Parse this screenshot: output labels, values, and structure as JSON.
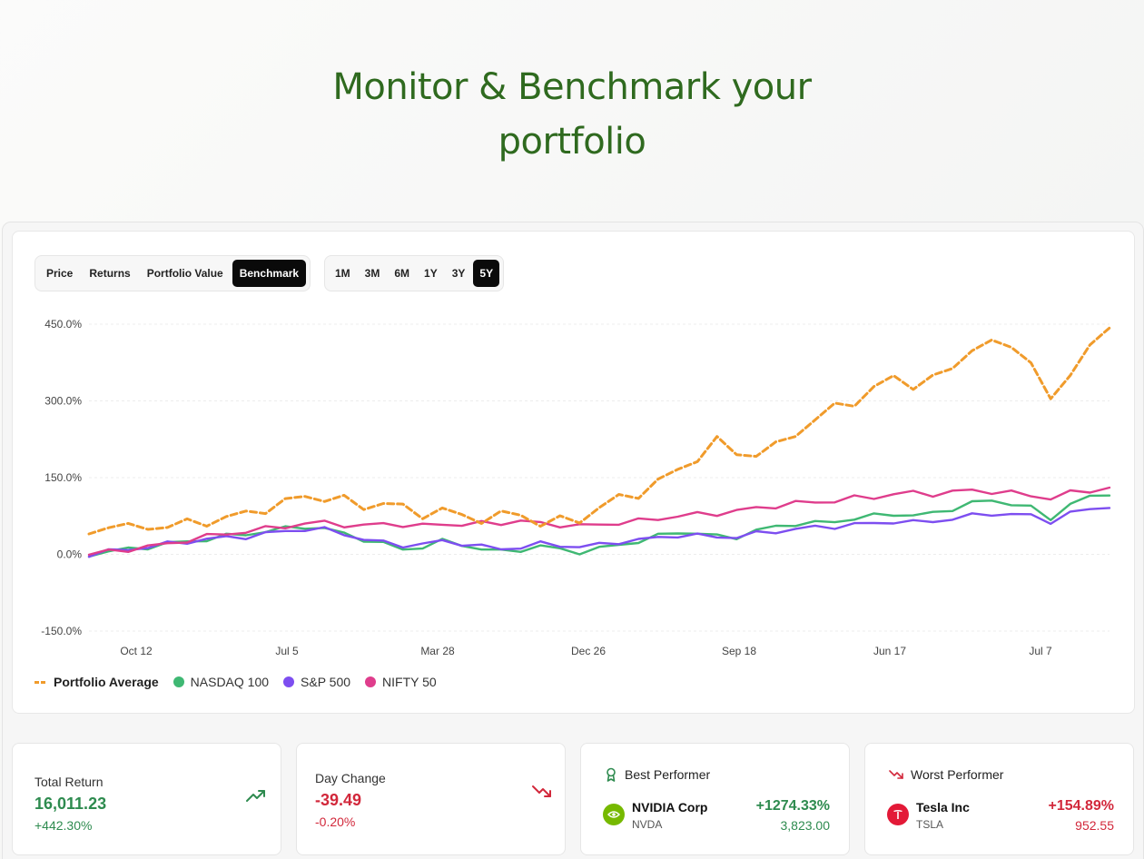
{
  "hero": {
    "line1": "Monitor & Benchmark your",
    "line2": "portfolio"
  },
  "view_tabs": [
    "Price",
    "Returns",
    "Portfolio Value",
    "Benchmark"
  ],
  "view_active": "Benchmark",
  "range_tabs": [
    "1M",
    "3M",
    "6M",
    "1Y",
    "3Y",
    "5Y"
  ],
  "range_active": "5Y",
  "chart_data": {
    "type": "line",
    "ylim": [
      -150,
      450
    ],
    "yticks": [
      "450.0%",
      "300.0%",
      "150.0%",
      "0.0%",
      "-150.0%"
    ],
    "ytick_values": [
      450,
      300,
      150,
      0,
      -150
    ],
    "xticks": [
      "Oct 12",
      "Jul 5",
      "Mar 28",
      "Dec 26",
      "Sep 18",
      "Jun 17",
      "Jul 7"
    ],
    "legend_position": "bottom-left",
    "grid": true,
    "series": [
      {
        "name": "Portfolio Average",
        "color": "#f09b2b",
        "dashed": true,
        "values": [
          40,
          60,
          50,
          55,
          55,
          60,
          65,
          70,
          80,
          90,
          100,
          115,
          110,
          105,
          95,
          100,
          90,
          80,
          85,
          75,
          70,
          75,
          80,
          60,
          65,
          70,
          90,
          110,
          120,
          140,
          165,
          190,
          220,
          200,
          195,
          210,
          240,
          260,
          290,
          300,
          320,
          350,
          330,
          340,
          370,
          400,
          410,
          415,
          370,
          300,
          360,
          400,
          445
        ]
      },
      {
        "name": "NASDAQ 100",
        "color": "#3fb873",
        "values": [
          0,
          5,
          10,
          15,
          20,
          25,
          30,
          35,
          40,
          45,
          50,
          55,
          50,
          40,
          30,
          20,
          10,
          15,
          25,
          20,
          10,
          5,
          10,
          15,
          10,
          5,
          10,
          20,
          25,
          35,
          45,
          40,
          35,
          35,
          45,
          55,
          60,
          60,
          65,
          70,
          75,
          80,
          75,
          80,
          90,
          100,
          105,
          100,
          90,
          70,
          100,
          110,
          120
        ]
      },
      {
        "name": "S&P 500",
        "color": "#7d4ef0",
        "values": [
          0,
          5,
          10,
          15,
          20,
          25,
          30,
          32,
          35,
          40,
          45,
          50,
          48,
          40,
          30,
          22,
          18,
          20,
          25,
          22,
          15,
          10,
          15,
          20,
          18,
          15,
          18,
          25,
          28,
          32,
          38,
          36,
          34,
          35,
          40,
          45,
          50,
          52,
          55,
          58,
          60,
          65,
          62,
          65,
          70,
          75,
          80,
          78,
          75,
          65,
          80,
          88,
          95
        ]
      },
      {
        "name": "NIFTY 50",
        "color": "#df3d8c",
        "values": [
          0,
          5,
          10,
          15,
          20,
          28,
          35,
          40,
          45,
          50,
          55,
          60,
          62,
          58,
          55,
          60,
          58,
          55,
          60,
          58,
          60,
          62,
          65,
          60,
          58,
          55,
          58,
          62,
          65,
          70,
          75,
          78,
          80,
          85,
          90,
          95,
          100,
          102,
          105,
          110,
          112,
          118,
          120,
          118,
          122,
          125,
          123,
          120,
          115,
          110,
          120,
          125,
          130
        ]
      }
    ]
  },
  "stats": {
    "total_return": {
      "label": "Total Return",
      "value": "16,011.23",
      "sub": "+442.30%"
    },
    "day_change": {
      "label": "Day Change",
      "value": "-39.49",
      "sub": "-0.20%"
    },
    "best": {
      "label": "Best Performer",
      "name": "NVIDIA Corp",
      "ticker": "NVDA",
      "pct": "+1274.33%",
      "value": "3,823.00"
    },
    "worst": {
      "label": "Worst Performer",
      "name": "Tesla Inc",
      "ticker": "TSLA",
      "pct": "+154.89%",
      "value": "952.55"
    }
  },
  "colors": {
    "green": "#2e8b4f",
    "red": "#d2283b",
    "title": "#2f6a1f"
  }
}
